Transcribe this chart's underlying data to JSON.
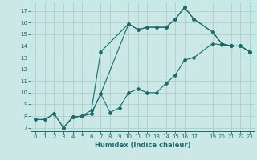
{
  "xlabel": "Humidex (Indice chaleur)",
  "bg_color": "#cce8e6",
  "grid_color": "#aacfcd",
  "line_color": "#1a6b6b",
  "xlim": [
    -0.5,
    23.5
  ],
  "ylim": [
    6.7,
    17.8
  ],
  "yticks": [
    7,
    8,
    9,
    10,
    11,
    12,
    13,
    14,
    15,
    16,
    17
  ],
  "xticks": [
    0,
    1,
    2,
    3,
    4,
    5,
    6,
    7,
    8,
    9,
    10,
    11,
    12,
    13,
    14,
    15,
    16,
    17,
    19,
    20,
    21,
    22,
    23
  ],
  "line1_x": [
    0,
    1,
    2,
    3,
    4,
    5,
    6,
    7,
    8,
    9,
    10,
    11,
    12,
    13,
    14,
    15,
    16,
    17,
    19,
    20,
    21,
    22,
    23
  ],
  "line1_y": [
    7.7,
    7.7,
    8.2,
    7.0,
    7.9,
    8.0,
    8.2,
    9.9,
    8.3,
    8.7,
    10.0,
    10.3,
    10.0,
    10.0,
    10.8,
    11.5,
    12.8,
    13.0,
    14.2,
    14.1,
    14.0,
    14.0,
    13.5
  ],
  "line2_x": [
    0,
    1,
    2,
    3,
    4,
    5,
    6,
    7,
    10,
    11,
    12,
    13,
    14,
    15,
    16,
    17,
    19,
    20,
    21,
    22,
    23
  ],
  "line2_y": [
    7.7,
    7.7,
    8.2,
    7.0,
    7.9,
    8.0,
    8.2,
    9.9,
    15.9,
    15.4,
    15.6,
    15.6,
    15.6,
    16.3,
    17.3,
    16.3,
    15.2,
    14.2,
    14.0,
    14.0,
    13.5
  ],
  "line3_x": [
    3,
    4,
    5,
    6,
    7,
    10,
    11,
    12,
    13,
    14,
    15,
    16,
    17,
    19,
    20,
    21,
    22,
    23
  ],
  "line3_y": [
    7.0,
    7.9,
    8.0,
    8.5,
    13.5,
    15.9,
    15.4,
    15.6,
    15.6,
    15.6,
    16.3,
    17.3,
    16.3,
    15.2,
    14.2,
    14.0,
    14.0,
    13.5
  ]
}
